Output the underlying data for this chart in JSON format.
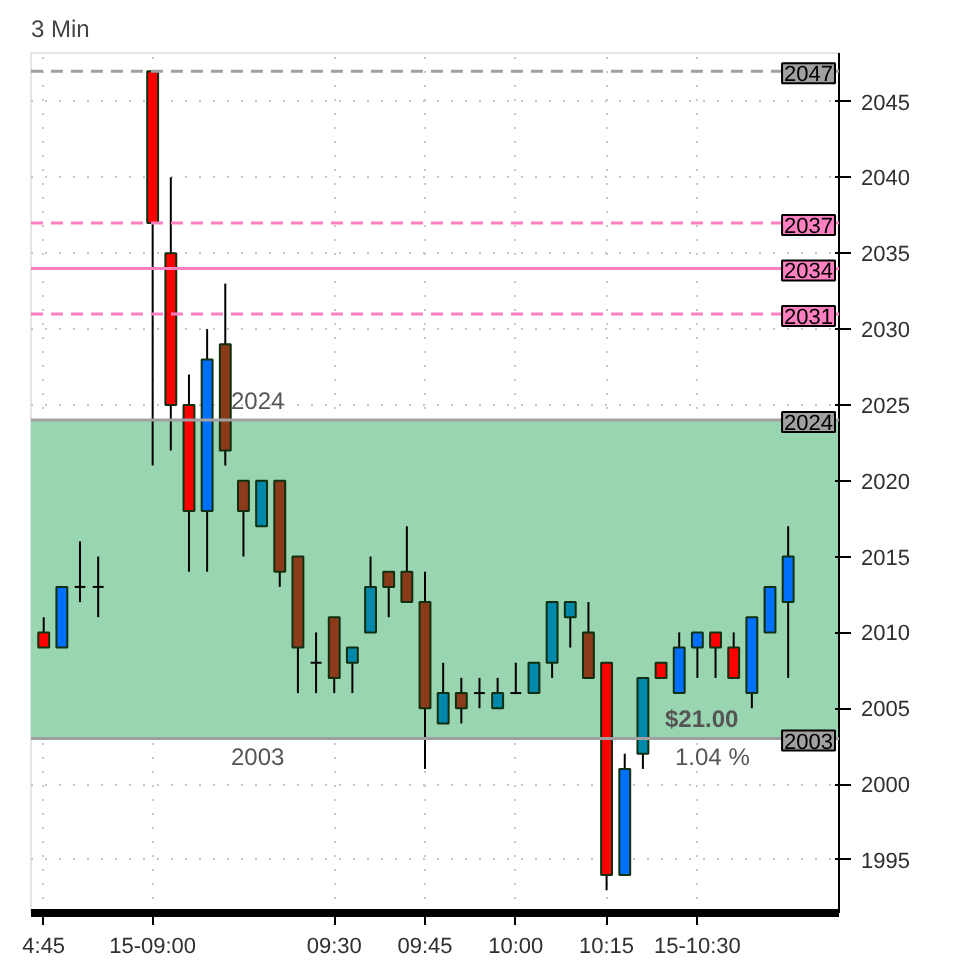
{
  "chart_data": {
    "type": "candlestick",
    "title": "3 Min",
    "categories": [
      "4:45",
      null,
      null,
      null,
      null,
      null,
      "15-09:00",
      null,
      null,
      null,
      null,
      null,
      null,
      null,
      null,
      null,
      "09:30",
      null,
      null,
      null,
      null,
      "09:45",
      null,
      null,
      null,
      null,
      "10:00",
      null,
      null,
      null,
      null,
      "10:15",
      null,
      null,
      null,
      null,
      "15-10:30",
      null,
      null,
      null,
      null,
      null
    ],
    "ohlc": [
      [
        2010,
        2011,
        2009,
        2009
      ],
      [
        2009,
        2013,
        2009,
        2013
      ],
      [
        2013,
        2016,
        2012,
        2013
      ],
      [
        2013,
        2015,
        2011,
        2013
      ],
      null,
      null,
      [
        2047,
        2047,
        2021,
        2037
      ],
      [
        2035,
        2040,
        2022,
        2025
      ],
      [
        2025,
        2027,
        2014,
        2018
      ],
      [
        2018,
        2030,
        2014,
        2028
      ],
      [
        2029,
        2033,
        2021,
        2022
      ],
      [
        2020,
        2020,
        2015,
        2018
      ],
      [
        2017,
        2020,
        2017,
        2020
      ],
      [
        2020,
        2020,
        2013,
        2014
      ],
      [
        2015,
        2015,
        2006,
        2009
      ],
      [
        2008,
        2010,
        2006,
        2008
      ],
      [
        2011,
        2011,
        2006,
        2007
      ],
      [
        2008,
        2009,
        2006,
        2009
      ],
      [
        2010,
        2015,
        2010,
        2013
      ],
      [
        2014,
        2014,
        2011,
        2013
      ],
      [
        2014,
        2017,
        2012,
        2012
      ],
      [
        2012,
        2014,
        2001,
        2005
      ],
      [
        2004,
        2008,
        2004,
        2006
      ],
      [
        2006,
        2007,
        2004,
        2005
      ],
      [
        2006,
        2007,
        2005,
        2006
      ],
      [
        2005,
        2007,
        2005,
        2006
      ],
      [
        2006,
        2008,
        2006,
        2006
      ],
      [
        2006,
        2008,
        2006,
        2008
      ],
      [
        2008,
        2012,
        2007,
        2012
      ],
      [
        2011,
        2012,
        2009,
        2012
      ],
      [
        2010,
        2012,
        2007,
        2007
      ],
      [
        2008,
        2008,
        1993,
        1994
      ],
      [
        1994,
        2002,
        1994,
        2001
      ],
      [
        2002,
        2007,
        2001,
        2007
      ],
      [
        2008,
        2008,
        2007,
        2007
      ],
      [
        2006,
        2010,
        2006,
        2009
      ],
      [
        2009,
        2010,
        2007,
        2010
      ],
      [
        2010,
        2010,
        2007,
        2009
      ],
      [
        2009,
        2010,
        2007,
        2007
      ],
      [
        2006,
        2011,
        2005,
        2011
      ],
      [
        2010,
        2013,
        2010,
        2013
      ],
      [
        2012,
        2017,
        2007,
        2015
      ]
    ],
    "colors": [
      "#ff0000",
      "#0070ff",
      "#000000",
      "#000000",
      null,
      null,
      "#ff0000",
      "#ff0000",
      "#ff0000",
      "#0070ff",
      "#8b3a1a",
      "#8b3a1a",
      "#0088aa",
      "#8b3a1a",
      "#8b3a1a",
      "#000000",
      "#8b3a1a",
      "#0088aa",
      "#0088aa",
      "#8b3a1a",
      "#8b3a1a",
      "#8b3a1a",
      "#0088aa",
      "#8b3a1a",
      "#000000",
      "#0088aa",
      "#000000",
      "#0088aa",
      "#0088aa",
      "#0088aa",
      "#8b3a1a",
      "#ff0000",
      "#0070ff",
      "#0088aa",
      "#ff0000",
      "#0070ff",
      "#0070ff",
      "#ff0000",
      "#ff0000",
      "#0070ff",
      "#0070ff",
      "#0070ff"
    ],
    "ylim": [
      1991.5,
      2048.2
    ],
    "yticks": [
      1995,
      2000,
      2005,
      2010,
      2015,
      2020,
      2025,
      2030,
      2035,
      2040,
      2045
    ],
    "grid": true,
    "ref_lines": [
      {
        "axis": "y",
        "value": 2047,
        "label": "2047",
        "color": "#a0a0a0",
        "line_style": "dashed"
      },
      {
        "axis": "y",
        "value": 2037,
        "label": "2037",
        "color": "#ff80c0",
        "line_style": "dashed"
      },
      {
        "axis": "y",
        "value": 2034,
        "label": "2034",
        "color": "#ff80c0",
        "line_style": "solid"
      },
      {
        "axis": "y",
        "value": 2031,
        "label": "2031",
        "color": "#ff80c0",
        "line_style": "dashed"
      },
      {
        "axis": "y",
        "value": 2024,
        "label": "2024",
        "color": "#a0a0a0",
        "line_style": "solid"
      },
      {
        "axis": "y",
        "value": 2003,
        "label": "2003",
        "color": "#a0a0a0",
        "line_style": "solid"
      }
    ],
    "bands": [
      {
        "axis": "y",
        "from": 2003,
        "to": 2024,
        "color": "#9ad5b2"
      }
    ],
    "annotations": [
      "2024",
      "2003",
      "$21.00",
      "1.04 %"
    ]
  }
}
